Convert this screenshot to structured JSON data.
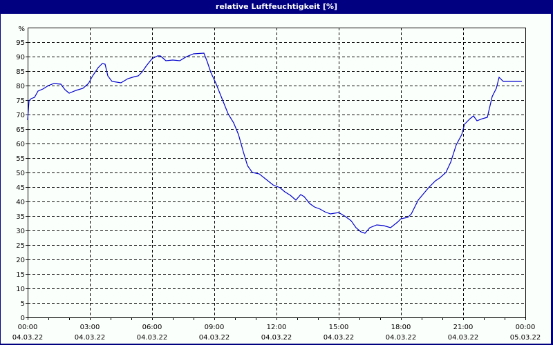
{
  "window": {
    "title": "relative Luftfeuchtigkeit [%]"
  },
  "colors": {
    "title_bar": "#000080",
    "background": "#fbfffb",
    "line": "#0000cc",
    "grid": "#000000"
  },
  "chart_data": {
    "type": "line",
    "title": "relative Luftfeuchtigkeit [%]",
    "xlabel": "",
    "ylabel": "%",
    "ylim": [
      0,
      100
    ],
    "xlim": [
      "04.03.22 00:00",
      "05.03.22 00:00"
    ],
    "grid": true,
    "y_ticks": [
      "0",
      "5",
      "10",
      "15",
      "20",
      "25",
      "30",
      "35",
      "40",
      "45",
      "50",
      "55",
      "60",
      "65",
      "70",
      "75",
      "80",
      "85",
      "90",
      "95",
      "%"
    ],
    "x_ticks": [
      {
        "time": "00:00",
        "date": "04.03.22"
      },
      {
        "time": "03:00",
        "date": "04.03.22"
      },
      {
        "time": "06:00",
        "date": "04.03.22"
      },
      {
        "time": "09:00",
        "date": "04.03.22"
      },
      {
        "time": "12:00",
        "date": "04.03.22"
      },
      {
        "time": "15:00",
        "date": "04.03.22"
      },
      {
        "time": "18:00",
        "date": "04.03.22"
      },
      {
        "time": "21:00",
        "date": "04.03.22"
      },
      {
        "time": "00:00",
        "date": "05.03.22"
      }
    ],
    "series": [
      {
        "name": "relative Luftfeuchtigkeit",
        "x_hours": [
          0,
          0.07,
          0.5,
          1.0,
          1.27,
          1.8,
          2.0,
          2.67,
          3.07,
          3.4,
          3.87,
          4.5,
          5.0,
          5.4,
          5.93,
          6.33,
          6.67,
          7.33,
          8.0,
          8.5,
          8.83,
          9.0,
          9.33,
          9.67,
          9.93,
          10.17,
          10.4,
          10.83,
          11.5,
          12.4,
          13.0,
          13.17,
          13.83,
          14.33,
          14.83,
          15.0,
          15.33,
          15.83,
          16.07,
          16.83,
          17.5,
          18.0,
          18.5,
          19.33,
          20.0,
          20.17,
          20.67,
          21.17,
          21.5,
          22.0,
          22.4,
          22.73,
          22.93,
          23.83
        ],
        "values": [
          68,
          75,
          78,
          80,
          81,
          77.4,
          78,
          81,
          86,
          87.6,
          81.4,
          81,
          83,
          86,
          89,
          90.2,
          87.6,
          87.6,
          91,
          91,
          84.5,
          81,
          76,
          70,
          67,
          63,
          57,
          50,
          46,
          42.4,
          40.5,
          42.4,
          37.4,
          35.7,
          36.7,
          34.8,
          31,
          29.5,
          29,
          31.9,
          31,
          34.5,
          40.5,
          47,
          50,
          53.5,
          59.5,
          66.7,
          68.6,
          69.5,
          68,
          76,
          82.8,
          81.4
        ]
      }
    ]
  }
}
